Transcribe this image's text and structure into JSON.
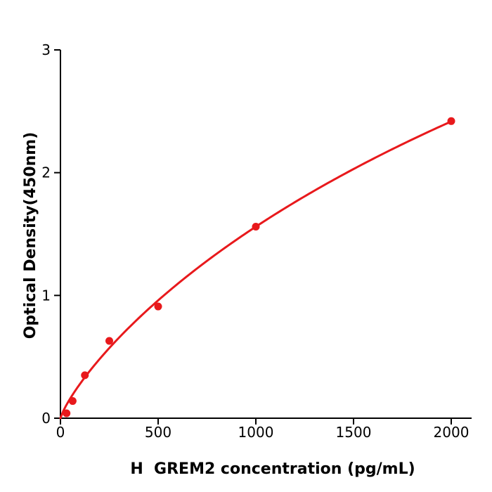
{
  "chart_data": {
    "type": "scatter",
    "xlabel": "H  GREM2 concentration (pg/mL)",
    "ylabel": "Optical Density(450nm)",
    "points": {
      "x": [
        31.25,
        62.5,
        125,
        250,
        500,
        1000,
        2000
      ],
      "od": [
        0.04,
        0.14,
        0.35,
        0.63,
        0.91,
        1.56,
        2.42
      ]
    },
    "fit_curve": {
      "model": "y = Vmax * x^b / (K + x^b)",
      "Vmax": 8.56,
      "K": 1294,
      "b": 0.82,
      "x_range": [
        0,
        2000
      ]
    },
    "xlim": [
      0,
      2110
    ],
    "ylim": [
      0,
      3
    ],
    "xticks": [
      0,
      500,
      1000,
      1500,
      2000
    ],
    "yticks": [
      0,
      1,
      2,
      3
    ],
    "grid": false,
    "legend": false,
    "colors": {
      "curve": "#e8191c",
      "marker": "#e8191c",
      "axis": "#000000",
      "background": "#ffffff"
    }
  }
}
